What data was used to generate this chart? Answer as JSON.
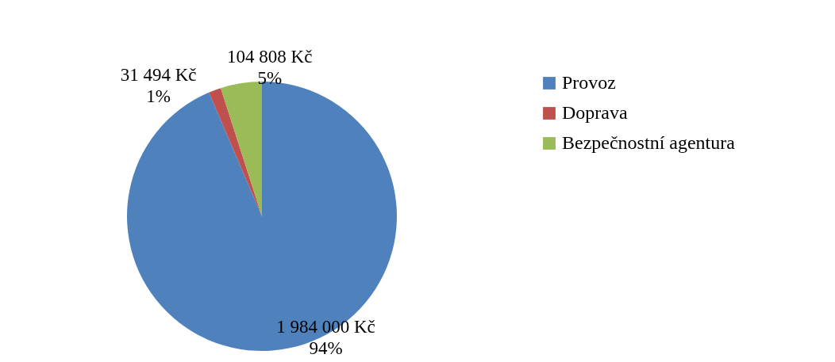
{
  "chart_data": {
    "type": "pie",
    "categories": [
      "Provoz",
      "Doprava",
      "Bezpečnostní agentura"
    ],
    "values": [
      1984000,
      31494,
      104808
    ],
    "colors": [
      "#4f81bd",
      "#c0504d",
      "#9bbb59"
    ],
    "value_labels": [
      "1 984 000 Kč\n94%",
      "31 494 Kč\n1%",
      "104 808 Kč\n5%"
    ],
    "legend": "right"
  }
}
